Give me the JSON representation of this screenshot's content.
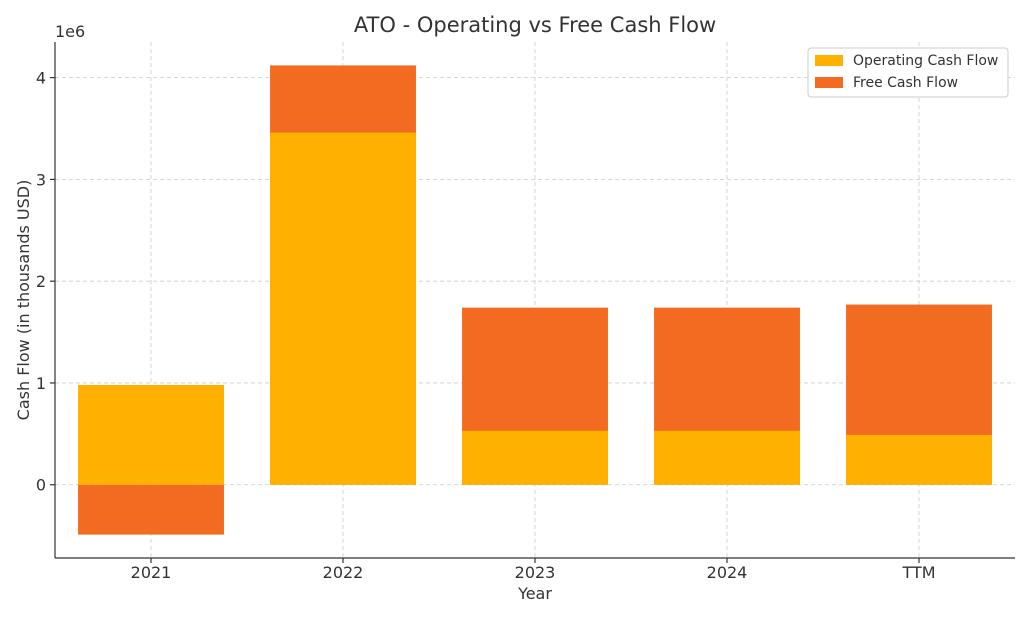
{
  "chart_data": {
    "type": "bar",
    "stacked": false,
    "title": "ATO - Operating vs Free Cash Flow",
    "xlabel": "Year",
    "ylabel": "Cash Flow (in thousands USD)",
    "y_offset_label": "1e6",
    "categories": [
      "2021",
      "2022",
      "2023",
      "2024",
      "TTM"
    ],
    "yticks": [
      0,
      1,
      2,
      3,
      4
    ],
    "ylim": [
      -0.72,
      4.35
    ],
    "grid": true,
    "legend_position": "top-right",
    "series": [
      {
        "name": "Operating Cash Flow",
        "color": "#ffb000",
        "values": [
          0.98,
          3.46,
          0.53,
          0.53,
          0.49
        ]
      },
      {
        "name": "Free Cash Flow",
        "color": "#f26b21",
        "values": [
          -0.49,
          4.12,
          1.74,
          1.74,
          1.77
        ]
      }
    ],
    "draw_order": [
      "Free Cash Flow",
      "Operating Cash Flow"
    ]
  }
}
